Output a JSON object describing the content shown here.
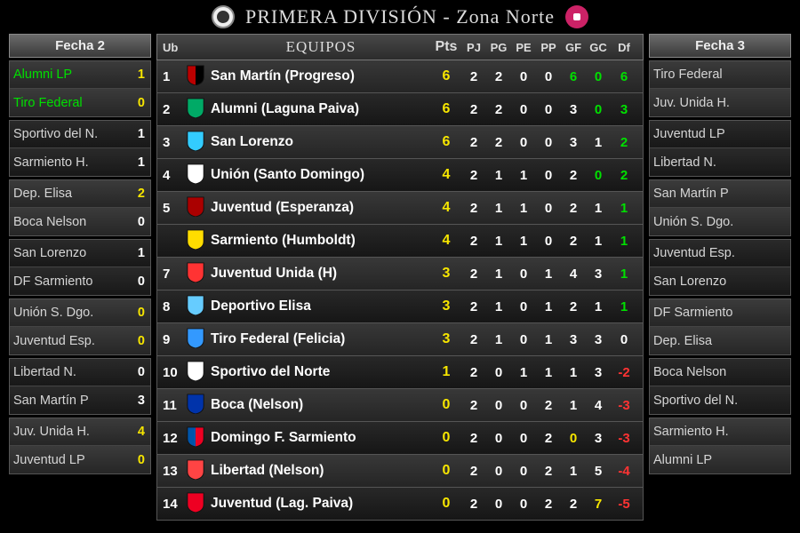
{
  "colors": {
    "yellow": "#f7e600",
    "green": "#00e000",
    "red": "#ff3333",
    "white": "#ffffff",
    "grey": "#d5d5d5"
  },
  "title": "PRIMERA DIVISIÓN - Zona Norte",
  "left": {
    "header": "Fecha 2",
    "matches": [
      {
        "home": "Alumni LP",
        "hs": "1",
        "away": "Tiro Federal",
        "as": "0",
        "homeColor": "green",
        "awayColor": "green",
        "hsColor": "yellow",
        "asColor": "yellow"
      },
      {
        "home": "Sportivo del N.",
        "hs": "1",
        "away": "Sarmiento H.",
        "as": "1",
        "homeColor": "grey",
        "awayColor": "grey",
        "hsColor": "white",
        "asColor": "white"
      },
      {
        "home": "Dep. Elisa",
        "hs": "2",
        "away": "Boca Nelson",
        "as": "0",
        "homeColor": "grey",
        "awayColor": "grey",
        "hsColor": "yellow",
        "asColor": "white"
      },
      {
        "home": "San Lorenzo",
        "hs": "1",
        "away": "DF Sarmiento",
        "as": "0",
        "homeColor": "grey",
        "awayColor": "grey",
        "hsColor": "white",
        "asColor": "white"
      },
      {
        "home": "Unión S. Dgo.",
        "hs": "0",
        "away": "Juventud Esp.",
        "as": "0",
        "homeColor": "grey",
        "awayColor": "grey",
        "hsColor": "yellow",
        "asColor": "yellow"
      },
      {
        "home": "Libertad N.",
        "hs": "0",
        "away": "San Martín P",
        "as": "3",
        "homeColor": "grey",
        "awayColor": "grey",
        "hsColor": "white",
        "asColor": "white"
      },
      {
        "home": "Juv. Unida H.",
        "hs": "4",
        "away": "Juventud LP",
        "as": "0",
        "homeColor": "grey",
        "awayColor": "grey",
        "hsColor": "yellow",
        "asColor": "yellow"
      }
    ]
  },
  "right": {
    "header": "Fecha 3",
    "matches": [
      {
        "home": "Tiro Federal",
        "away": "Juv. Unida H."
      },
      {
        "home": "Juventud LP",
        "away": "Libertad N."
      },
      {
        "home": "San Martín P",
        "away": "Unión S. Dgo."
      },
      {
        "home": "Juventud Esp.",
        "away": "San Lorenzo"
      },
      {
        "home": "DF Sarmiento",
        "away": "Dep. Elisa"
      },
      {
        "home": "Boca Nelson",
        "away": "Sportivo del N."
      },
      {
        "home": "Sarmiento H.",
        "away": "Alumni LP"
      }
    ]
  },
  "standings": {
    "headers": {
      "pos": "Ub",
      "team": "EQUIPOS",
      "pts": "Pts",
      "pj": "PJ",
      "pg": "PG",
      "pe": "PE",
      "pp": "PP",
      "gf": "GF",
      "gc": "GC",
      "df": "Df"
    },
    "rows": [
      {
        "pos": "1",
        "team": "San Martín (Progreso)",
        "pts": "6",
        "ptsColor": "yellow",
        "pj": "2",
        "pg": "2",
        "pe": "0",
        "pp": "0",
        "gf": "6",
        "gfColor": "green",
        "gc": "0",
        "gcColor": "green",
        "df": "6",
        "dfColor": "green",
        "crest": [
          "#b00",
          "#fff",
          "#000"
        ]
      },
      {
        "pos": "2",
        "team": "Alumni (Laguna Paiva)",
        "pts": "6",
        "ptsColor": "yellow",
        "pj": "2",
        "pg": "2",
        "pe": "0",
        "pp": "0",
        "gf": "3",
        "gfColor": "white",
        "gc": "0",
        "gcColor": "green",
        "df": "3",
        "dfColor": "green",
        "crest": [
          "#0a6",
          "#fff",
          "#0a6"
        ]
      },
      {
        "pos": "3",
        "team": "San Lorenzo",
        "pts": "6",
        "ptsColor": "yellow",
        "pj": "2",
        "pg": "2",
        "pe": "0",
        "pp": "0",
        "gf": "3",
        "gfColor": "white",
        "gc": "1",
        "gcColor": "white",
        "df": "2",
        "dfColor": "green",
        "crest": [
          "#3cf",
          "#fff",
          "#3cf"
        ]
      },
      {
        "pos": "4",
        "team": "Unión (Santo Domingo)",
        "pts": "4",
        "ptsColor": "yellow",
        "pj": "2",
        "pg": "1",
        "pe": "1",
        "pp": "0",
        "gf": "2",
        "gfColor": "white",
        "gc": "0",
        "gcColor": "green",
        "df": "2",
        "dfColor": "green",
        "crest": [
          "#fff",
          "#000",
          "#fff"
        ]
      },
      {
        "pos": "5",
        "team": "Juventud (Esperanza)",
        "pts": "4",
        "ptsColor": "yellow",
        "pj": "2",
        "pg": "1",
        "pe": "1",
        "pp": "0",
        "gf": "2",
        "gfColor": "white",
        "gc": "1",
        "gcColor": "white",
        "df": "1",
        "dfColor": "green",
        "crest": [
          "#a00",
          "#fff",
          "#a00"
        ]
      },
      {
        "pos": "",
        "team": "Sarmiento (Humboldt)",
        "pts": "4",
        "ptsColor": "yellow",
        "pj": "2",
        "pg": "1",
        "pe": "1",
        "pp": "0",
        "gf": "2",
        "gfColor": "white",
        "gc": "1",
        "gcColor": "white",
        "df": "1",
        "dfColor": "green",
        "crest": [
          "#fd0",
          "#000",
          "#fd0"
        ]
      },
      {
        "pos": "7",
        "team": "Juventud Unida (H)",
        "pts": "3",
        "ptsColor": "yellow",
        "pj": "2",
        "pg": "1",
        "pe": "0",
        "pp": "1",
        "gf": "4",
        "gfColor": "white",
        "gc": "3",
        "gcColor": "white",
        "df": "1",
        "dfColor": "green",
        "crest": [
          "#f33",
          "#fff",
          "#f33"
        ]
      },
      {
        "pos": "8",
        "team": "Deportivo Elisa",
        "pts": "3",
        "ptsColor": "yellow",
        "pj": "2",
        "pg": "1",
        "pe": "0",
        "pp": "1",
        "gf": "2",
        "gfColor": "white",
        "gc": "1",
        "gcColor": "white",
        "df": "1",
        "dfColor": "green",
        "crest": [
          "#6cf",
          "#fff",
          "#6cf"
        ]
      },
      {
        "pos": "9",
        "team": "Tiro Federal (Felicia)",
        "pts": "3",
        "ptsColor": "yellow",
        "pj": "2",
        "pg": "1",
        "pe": "0",
        "pp": "1",
        "gf": "3",
        "gfColor": "white",
        "gc": "3",
        "gcColor": "white",
        "df": "0",
        "dfColor": "white",
        "crest": [
          "#39f",
          "#fff",
          "#39f"
        ]
      },
      {
        "pos": "10",
        "team": "Sportivo del Norte",
        "pts": "1",
        "ptsColor": "yellow",
        "pj": "2",
        "pg": "0",
        "pe": "1",
        "pp": "1",
        "gf": "1",
        "gfColor": "white",
        "gc": "3",
        "gcColor": "white",
        "df": "-2",
        "dfColor": "red",
        "crest": [
          "#fff",
          "#000",
          "#fff"
        ]
      },
      {
        "pos": "11",
        "team": "Boca (Nelson)",
        "pts": "0",
        "ptsColor": "yellow",
        "pj": "2",
        "pg": "0",
        "pe": "0",
        "pp": "2",
        "gf": "1",
        "gfColor": "white",
        "gc": "4",
        "gcColor": "white",
        "df": "-3",
        "dfColor": "red",
        "crest": [
          "#03a",
          "#fc0",
          "#03a"
        ]
      },
      {
        "pos": "12",
        "team": "Domingo F. Sarmiento",
        "pts": "0",
        "ptsColor": "yellow",
        "pj": "2",
        "pg": "0",
        "pe": "0",
        "pp": "2",
        "gf": "0",
        "gfColor": "yellow",
        "gc": "3",
        "gcColor": "white",
        "df": "-3",
        "dfColor": "red",
        "crest": [
          "#05a",
          "#fff",
          "#e02"
        ]
      },
      {
        "pos": "13",
        "team": "Libertad (Nelson)",
        "pts": "0",
        "ptsColor": "yellow",
        "pj": "2",
        "pg": "0",
        "pe": "0",
        "pp": "2",
        "gf": "1",
        "gfColor": "white",
        "gc": "5",
        "gcColor": "white",
        "df": "-4",
        "dfColor": "red",
        "crest": [
          "#f44",
          "#fff",
          "#f44"
        ]
      },
      {
        "pos": "14",
        "team": "Juventud (Lag. Paiva)",
        "pts": "0",
        "ptsColor": "yellow",
        "pj": "2",
        "pg": "0",
        "pe": "0",
        "pp": "2",
        "gf": "2",
        "gfColor": "white",
        "gc": "7",
        "gcColor": "yellow",
        "df": "-5",
        "dfColor": "red",
        "crest": [
          "#e02",
          "#fff",
          "#e02"
        ]
      }
    ]
  }
}
